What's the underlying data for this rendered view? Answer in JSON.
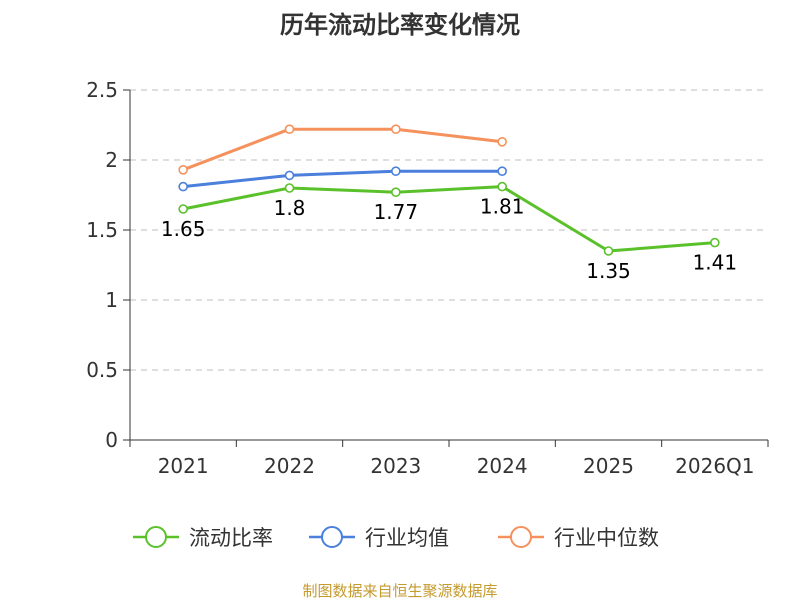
{
  "chart_data": {
    "type": "line",
    "title": "历年流动比率变化情况",
    "categories": [
      "2021",
      "2022",
      "2023",
      "2024",
      "2025",
      "2026Q1"
    ],
    "ylim": [
      0,
      2.5
    ],
    "yticks": [
      "0",
      "0.5",
      "1",
      "1.5",
      "2",
      "2.5"
    ],
    "ytick_values": [
      0,
      0.5,
      1,
      1.5,
      2,
      2.5
    ],
    "grid": true,
    "legend_position": "bottom",
    "series": [
      {
        "name": "流动比率",
        "color": "#5ac12a",
        "values": [
          1.65,
          1.8,
          1.77,
          1.81,
          1.35,
          1.41
        ],
        "labels": [
          "1.65",
          "1.8",
          "1.77",
          "1.81",
          "1.35",
          "1.41"
        ]
      },
      {
        "name": "行业均值",
        "color": "#4a7fdc",
        "values": [
          1.81,
          1.89,
          1.92,
          1.92,
          null,
          null
        ]
      },
      {
        "name": "行业中位数",
        "color": "#f5915c",
        "values": [
          1.93,
          2.22,
          2.22,
          2.13,
          null,
          null
        ]
      }
    ]
  },
  "source_text": "制图数据来自恒生聚源数据库"
}
